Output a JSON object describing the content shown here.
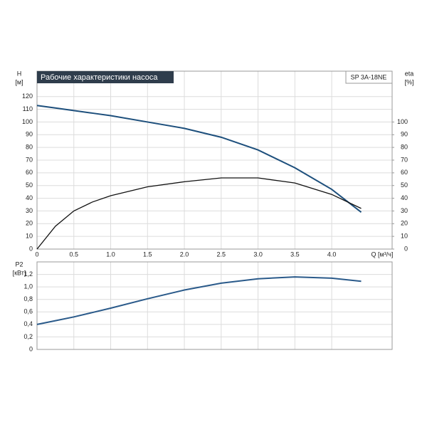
{
  "chart_data": [
    {
      "type": "line",
      "title": "Рабочие характеристики насоса",
      "model": "SP 3A-18NE",
      "y_label": "H",
      "y_unit": "[м]",
      "y2_label": "eta",
      "y2_unit": "[%]",
      "x_label": "Q [м³/ч]",
      "x": [
        0,
        0.25,
        0.5,
        0.75,
        1,
        1.5,
        2,
        2.5,
        3,
        3.5,
        4,
        4.4
      ],
      "series": [
        {
          "color": "#1d4f7c",
          "values": [
            113,
            111,
            109,
            107,
            105,
            100,
            95,
            88,
            78,
            64,
            47,
            29
          ]
        },
        {
          "color": "#111111",
          "axis": "y2",
          "values": [
            0,
            18,
            30,
            37,
            42,
            49,
            53,
            56,
            56,
            52,
            43,
            32
          ]
        }
      ],
      "xlim": [
        0,
        4.82
      ],
      "xticks": [
        0,
        {
          "value": 0.5,
          "label": "0.5"
        },
        {
          "value": 1,
          "label": "1.0"
        },
        {
          "value": 1.5,
          "label": "1.5"
        },
        {
          "value": 2,
          "label": "2.0"
        },
        {
          "value": 2.5,
          "label": "2.5"
        },
        {
          "value": 3,
          "label": "3.0"
        },
        {
          "value": 3.5,
          "label": "3.5"
        },
        {
          "value": 4,
          "label": "4.0"
        }
      ],
      "ylim": [
        0,
        140
      ],
      "yticks": [
        0,
        10,
        20,
        30,
        40,
        50,
        60,
        70,
        80,
        90,
        100,
        110,
        120
      ],
      "y2lim": [
        0,
        140
      ],
      "y2ticks": [
        0,
        10,
        20,
        30,
        40,
        50,
        60,
        70,
        80,
        90,
        100
      ],
      "grid": true
    },
    {
      "type": "line",
      "y_label": "P2",
      "y_unit": "[кВт]",
      "x": [
        0,
        0.25,
        0.5,
        0.75,
        1,
        1.5,
        2,
        2.5,
        3,
        3.5,
        4,
        4.4
      ],
      "series": [
        {
          "color": "#2a5a8a",
          "values": [
            0.4,
            0.46,
            0.52,
            0.59,
            0.66,
            0.81,
            0.95,
            1.06,
            1.13,
            1.16,
            1.14,
            1.09
          ]
        }
      ],
      "xlim": [
        0,
        4.82
      ],
      "xticks": [
        0,
        0.5,
        1,
        1.5,
        2,
        2.5,
        3,
        3.5,
        4
      ],
      "ylim": [
        0,
        1.4
      ],
      "yticks": [
        0,
        {
          "value": 0.2,
          "label": "0,2"
        },
        {
          "value": 0.4,
          "label": "0,4"
        },
        {
          "value": 0.6,
          "label": "0,6"
        },
        {
          "value": 0.8,
          "label": "0,8"
        },
        {
          "value": 1.0,
          "label": "1,0"
        },
        {
          "value": 1.2,
          "label": "1,2"
        }
      ],
      "grid": true
    }
  ]
}
